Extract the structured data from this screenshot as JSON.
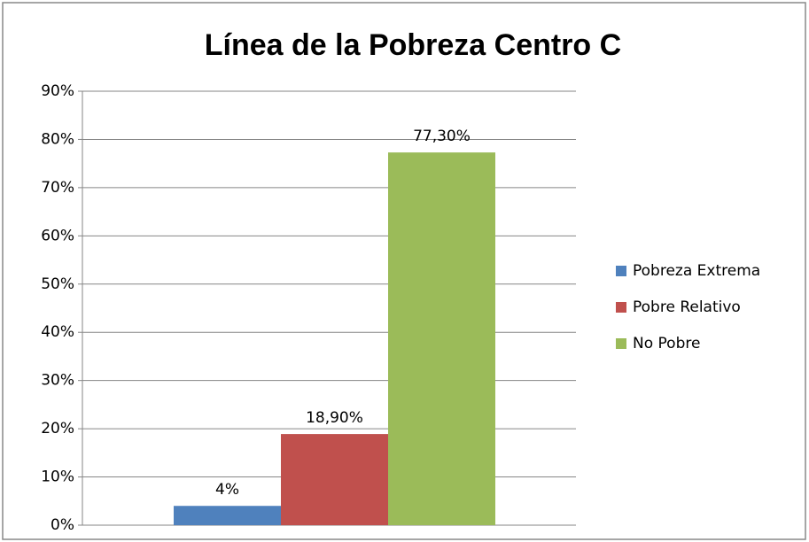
{
  "chart_data": {
    "type": "bar",
    "title": "Línea de la Pobreza Centro C",
    "categories": [
      null
    ],
    "series": [
      {
        "name": "Pobreza Extrema",
        "color": "#4f81bd",
        "values": [
          4
        ],
        "value_labels": [
          "4%"
        ]
      },
      {
        "name": "Pobre Relativo",
        "color": "#c0504d",
        "values": [
          18.9
        ],
        "value_labels": [
          "18,90%"
        ]
      },
      {
        "name": "No Pobre",
        "color": "#9bbb59",
        "values": [
          77.3
        ],
        "value_labels": [
          "77,30%"
        ]
      }
    ],
    "ylim": [
      0,
      90
    ],
    "yticks": [
      {
        "value": 0,
        "label": "0%"
      },
      {
        "value": 10,
        "label": "10%"
      },
      {
        "value": 20,
        "label": "20%"
      },
      {
        "value": 30,
        "label": "30%"
      },
      {
        "value": 40,
        "label": "40%"
      },
      {
        "value": 50,
        "label": "50%"
      },
      {
        "value": 60,
        "label": "60%"
      },
      {
        "value": 70,
        "label": "70%"
      },
      {
        "value": 80,
        "label": "80%"
      },
      {
        "value": 90,
        "label": "90%"
      }
    ],
    "grid": true,
    "legend": "right"
  }
}
